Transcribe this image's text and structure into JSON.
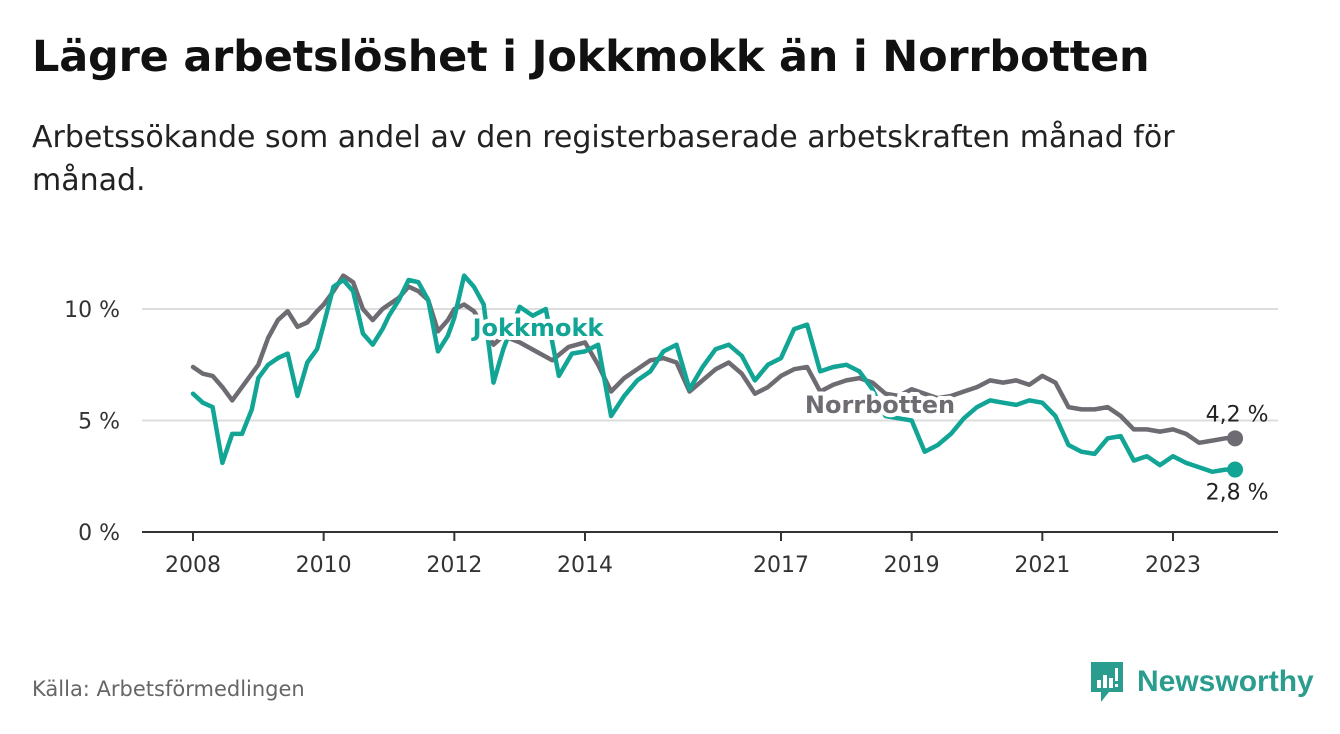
{
  "header": {
    "title": "Lägre arbetslöshet i Jokkmokk än i Norrbotten",
    "subtitle": "Arbetssökande som andel av den registerbaserade arbetskraften månad för månad."
  },
  "footer": {
    "source": "Källa: Arbetsförmedlingen",
    "brand": "Newsworthy"
  },
  "colors": {
    "jokkmokk": "#12a596",
    "norrbotten": "#6e6c72",
    "grid": "#dddddd",
    "axis": "#333333",
    "brand": "#2a9d8f"
  },
  "chart_data": {
    "type": "line",
    "title": "Lägre arbetslöshet i Jokkmokk än i Norrbotten",
    "xlabel": "",
    "ylabel": "",
    "xlim": [
      2007.7,
      2024.9
    ],
    "ylim": [
      0,
      10
    ],
    "x_ticks": [
      {
        "value": 2008,
        "label": "2008"
      },
      {
        "value": 2010,
        "label": "2010"
      },
      {
        "value": 2012,
        "label": "2012"
      },
      {
        "value": 2014,
        "label": "2014"
      },
      {
        "value": 2017,
        "label": "2017"
      },
      {
        "value": 2019,
        "label": "2019"
      },
      {
        "value": 2021,
        "label": "2021"
      },
      {
        "value": 2023,
        "label": "2023"
      }
    ],
    "y_ticks": [
      {
        "value": 0,
        "label": "0 %"
      },
      {
        "value": 5,
        "label": "5 %"
      },
      {
        "value": 10,
        "label": "10 %"
      }
    ],
    "series": [
      {
        "name": "Norrbotten",
        "color": "#6e6c72",
        "end_label": "4,2 %",
        "x": [
          2008.0,
          2008.15,
          2008.3,
          2008.45,
          2008.6,
          2008.75,
          2009.0,
          2009.15,
          2009.3,
          2009.45,
          2009.6,
          2009.75,
          2009.9,
          2010.0,
          2010.15,
          2010.3,
          2010.45,
          2010.6,
          2010.75,
          2010.9,
          2011.0,
          2011.15,
          2011.3,
          2011.45,
          2011.6,
          2011.75,
          2011.9,
          2012.0,
          2012.15,
          2012.3,
          2012.45,
          2012.6,
          2012.75,
          2013.0,
          2013.25,
          2013.5,
          2013.75,
          2014.0,
          2014.2,
          2014.4,
          2014.6,
          2014.8,
          2015.0,
          2015.2,
          2015.4,
          2015.6,
          2015.8,
          2016.0,
          2016.2,
          2016.4,
          2016.6,
          2016.8,
          2017.0,
          2017.2,
          2017.4,
          2017.6,
          2017.8,
          2018.0,
          2018.2,
          2018.4,
          2018.6,
          2018.8,
          2019.0,
          2019.2,
          2019.4,
          2019.6,
          2019.8,
          2020.0,
          2020.2,
          2020.4,
          2020.6,
          2020.8,
          2021.0,
          2021.2,
          2021.4,
          2021.6,
          2021.8,
          2022.0,
          2022.2,
          2022.4,
          2022.6,
          2022.8,
          2023.0,
          2023.2,
          2023.4,
          2023.6,
          2023.8,
          2023.95
        ],
        "values": [
          7.4,
          7.1,
          7.0,
          6.5,
          5.9,
          6.5,
          7.5,
          8.7,
          9.5,
          9.9,
          9.2,
          9.4,
          9.9,
          10.2,
          10.8,
          11.5,
          11.2,
          10.0,
          9.5,
          10.0,
          10.2,
          10.5,
          11.0,
          10.8,
          10.4,
          9.0,
          9.5,
          10.0,
          10.2,
          9.9,
          9.2,
          8.4,
          8.8,
          8.5,
          8.1,
          7.7,
          8.3,
          8.5,
          7.5,
          6.3,
          6.9,
          7.3,
          7.7,
          7.8,
          7.6,
          6.3,
          6.8,
          7.3,
          7.6,
          7.1,
          6.2,
          6.5,
          7.0,
          7.3,
          7.4,
          6.3,
          6.6,
          6.8,
          6.9,
          6.7,
          6.2,
          6.1,
          6.4,
          6.2,
          6.0,
          6.1,
          6.3,
          6.5,
          6.8,
          6.7,
          6.8,
          6.6,
          7.0,
          6.7,
          5.6,
          5.5,
          5.5,
          5.6,
          5.2,
          4.6,
          4.6,
          4.5,
          4.6,
          4.4,
          4.0,
          4.1,
          4.2,
          4.2
        ]
      },
      {
        "name": "Jokkmokk",
        "color": "#12a596",
        "end_label": "2,8 %",
        "x": [
          2008.0,
          2008.15,
          2008.3,
          2008.45,
          2008.6,
          2008.75,
          2008.9,
          2009.0,
          2009.15,
          2009.3,
          2009.45,
          2009.6,
          2009.75,
          2009.9,
          2010.0,
          2010.15,
          2010.3,
          2010.45,
          2010.6,
          2010.75,
          2010.9,
          2011.0,
          2011.15,
          2011.3,
          2011.45,
          2011.6,
          2011.75,
          2011.9,
          2012.0,
          2012.15,
          2012.3,
          2012.45,
          2012.6,
          2012.75,
          2013.0,
          2013.2,
          2013.4,
          2013.6,
          2013.8,
          2014.0,
          2014.2,
          2014.4,
          2014.6,
          2014.8,
          2015.0,
          2015.2,
          2015.4,
          2015.6,
          2015.8,
          2016.0,
          2016.2,
          2016.4,
          2016.6,
          2016.8,
          2017.0,
          2017.2,
          2017.4,
          2017.6,
          2017.8,
          2018.0,
          2018.2,
          2018.4,
          2018.6,
          2018.8,
          2019.0,
          2019.2,
          2019.4,
          2019.6,
          2019.8,
          2020.0,
          2020.2,
          2020.4,
          2020.6,
          2020.8,
          2021.0,
          2021.2,
          2021.4,
          2021.6,
          2021.8,
          2022.0,
          2022.2,
          2022.4,
          2022.6,
          2022.8,
          2023.0,
          2023.2,
          2023.4,
          2023.6,
          2023.8,
          2023.95
        ],
        "values": [
          6.2,
          5.8,
          5.6,
          3.1,
          4.4,
          4.4,
          5.5,
          6.9,
          7.5,
          7.8,
          8.0,
          6.1,
          7.6,
          8.2,
          9.3,
          11.0,
          11.3,
          10.8,
          8.9,
          8.4,
          9.1,
          9.7,
          10.4,
          11.3,
          11.2,
          10.4,
          8.1,
          8.8,
          9.6,
          11.5,
          11.0,
          10.2,
          6.7,
          8.2,
          10.1,
          9.7,
          10.0,
          7.0,
          8.0,
          8.1,
          8.4,
          5.2,
          6.1,
          6.8,
          7.2,
          8.1,
          8.4,
          6.4,
          7.4,
          8.2,
          8.4,
          7.9,
          6.8,
          7.5,
          7.8,
          9.1,
          9.3,
          7.2,
          7.4,
          7.5,
          7.2,
          6.4,
          5.2,
          5.1,
          5.0,
          3.6,
          3.9,
          4.4,
          5.1,
          5.6,
          5.9,
          5.8,
          5.7,
          5.9,
          5.8,
          5.2,
          3.9,
          3.6,
          3.5,
          4.2,
          4.3,
          3.2,
          3.4,
          3.0,
          3.4,
          3.1,
          2.9,
          2.7,
          2.8,
          2.8
        ]
      }
    ]
  }
}
